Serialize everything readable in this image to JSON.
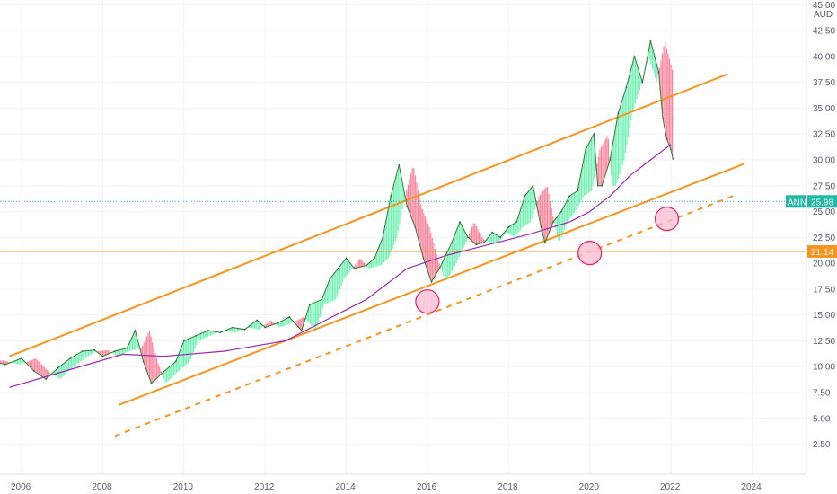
{
  "chart_data": {
    "type": "line",
    "title": "",
    "currency": "AUD",
    "x_ticks": [
      "2006",
      "2008",
      "2010",
      "2012",
      "2014",
      "2016",
      "2018",
      "2020",
      "2022",
      "2024"
    ],
    "y_ticks": [
      "45.00",
      "42.50",
      "40.00",
      "37.50",
      "35.00",
      "32.50",
      "30.00",
      "27.50",
      "25.00",
      "22.50",
      "20.00",
      "17.50",
      "15.00",
      "12.50",
      "10.00",
      "7.50",
      "5.00",
      "2.50"
    ],
    "xlim": [
      2006,
      2024.5
    ],
    "ylim": [
      0.9,
      45.2
    ],
    "grid": true,
    "series": [
      {
        "name": "ANN",
        "color": "#1fb8a0",
        "points": [
          [
            2005.2,
            10.6
          ],
          [
            2005.6,
            10.2
          ],
          [
            2006.0,
            10.8
          ],
          [
            2006.3,
            9.6
          ],
          [
            2006.6,
            8.8
          ],
          [
            2006.9,
            9.9
          ],
          [
            2007.2,
            10.8
          ],
          [
            2007.5,
            11.5
          ],
          [
            2007.8,
            11.6
          ],
          [
            2008.0,
            11.0
          ],
          [
            2008.3,
            11.5
          ],
          [
            2008.6,
            11.8
          ],
          [
            2008.8,
            13.5
          ],
          [
            2009.0,
            10.5
          ],
          [
            2009.2,
            8.4
          ],
          [
            2009.5,
            9.5
          ],
          [
            2009.8,
            10.5
          ],
          [
            2010.0,
            12.5
          ],
          [
            2010.3,
            13.0
          ],
          [
            2010.6,
            13.5
          ],
          [
            2010.9,
            13.3
          ],
          [
            2011.2,
            13.8
          ],
          [
            2011.5,
            13.6
          ],
          [
            2011.8,
            14.5
          ],
          [
            2012.0,
            13.8
          ],
          [
            2012.3,
            14.2
          ],
          [
            2012.6,
            14.8
          ],
          [
            2012.9,
            13.5
          ],
          [
            2013.1,
            16.0
          ],
          [
            2013.4,
            16.5
          ],
          [
            2013.6,
            18.5
          ],
          [
            2013.8,
            19.5
          ],
          [
            2014.0,
            20.5
          ],
          [
            2014.2,
            19.5
          ],
          [
            2014.5,
            19.8
          ],
          [
            2014.7,
            20.5
          ],
          [
            2014.9,
            22.5
          ],
          [
            2015.1,
            26.5
          ],
          [
            2015.3,
            29.5
          ],
          [
            2015.5,
            25.5
          ],
          [
            2015.7,
            23.5
          ],
          [
            2015.9,
            20.5
          ],
          [
            2016.1,
            18.2
          ],
          [
            2016.3,
            19.5
          ],
          [
            2016.6,
            22.0
          ],
          [
            2016.8,
            24.0
          ],
          [
            2017.0,
            22.5
          ],
          [
            2017.2,
            21.8
          ],
          [
            2017.4,
            22.0
          ],
          [
            2017.6,
            23.0
          ],
          [
            2017.8,
            22.5
          ],
          [
            2018.0,
            23.5
          ],
          [
            2018.2,
            24.0
          ],
          [
            2018.4,
            26.5
          ],
          [
            2018.6,
            27.5
          ],
          [
            2018.8,
            23.5
          ],
          [
            2018.9,
            22.0
          ],
          [
            2019.1,
            24.0
          ],
          [
            2019.3,
            25.0
          ],
          [
            2019.5,
            26.5
          ],
          [
            2019.7,
            27.0
          ],
          [
            2019.9,
            31.0
          ],
          [
            2020.1,
            32.5
          ],
          [
            2020.2,
            27.5
          ],
          [
            2020.3,
            27.5
          ],
          [
            2020.5,
            30.0
          ],
          [
            2020.7,
            34.5
          ],
          [
            2020.9,
            37.0
          ],
          [
            2021.1,
            40.0
          ],
          [
            2021.3,
            37.5
          ],
          [
            2021.5,
            41.5
          ],
          [
            2021.7,
            38.5
          ],
          [
            2021.8,
            34.0
          ],
          [
            2021.9,
            32.0
          ],
          [
            2022.0,
            31.0
          ],
          [
            2022.05,
            30.1
          ]
        ]
      }
    ],
    "price_label": {
      "ticker": "ANN",
      "value": "25.98",
      "y": 25.98
    },
    "horizontal_line": {
      "value": "21.14",
      "y": 21.14
    },
    "channel": {
      "color": "#f7941d",
      "upper": [
        [
          2005.7,
          11.0
        ],
        [
          2023.4,
          38.3
        ]
      ],
      "lower": [
        [
          2008.4,
          6.3
        ],
        [
          2023.8,
          29.6
        ]
      ],
      "dashed": [
        [
          2008.3,
          3.3
        ],
        [
          2023.6,
          26.6
        ]
      ]
    },
    "moving_average": {
      "color": "#9c27b0",
      "points": [
        [
          2005.7,
          8.0
        ],
        [
          2007.0,
          9.5
        ],
        [
          2008.5,
          11.2
        ],
        [
          2009.5,
          11.0
        ],
        [
          2011.0,
          11.5
        ],
        [
          2012.5,
          12.5
        ],
        [
          2013.5,
          14.5
        ],
        [
          2014.5,
          16.5
        ],
        [
          2015.5,
          19.5
        ],
        [
          2016.5,
          20.8
        ],
        [
          2017.5,
          21.8
        ],
        [
          2018.5,
          22.8
        ],
        [
          2019.5,
          24.0
        ],
        [
          2020.0,
          25.0
        ],
        [
          2020.5,
          26.5
        ],
        [
          2021.0,
          28.5
        ],
        [
          2021.5,
          30.0
        ],
        [
          2022.0,
          31.5
        ]
      ]
    },
    "markers": [
      {
        "x": 2016.0,
        "y": 16.3
      },
      {
        "x": 2020.0,
        "y": 21.0
      },
      {
        "x": 2021.9,
        "y": 24.3
      }
    ],
    "colors": {
      "up": "#00e676",
      "down": "#ff1744",
      "orange": "#f7941d",
      "teal": "#1fb8a0",
      "marker_fill": "#f8bbd0",
      "marker_stroke": "#e91e63",
      "axis_text": "#555c66"
    }
  }
}
